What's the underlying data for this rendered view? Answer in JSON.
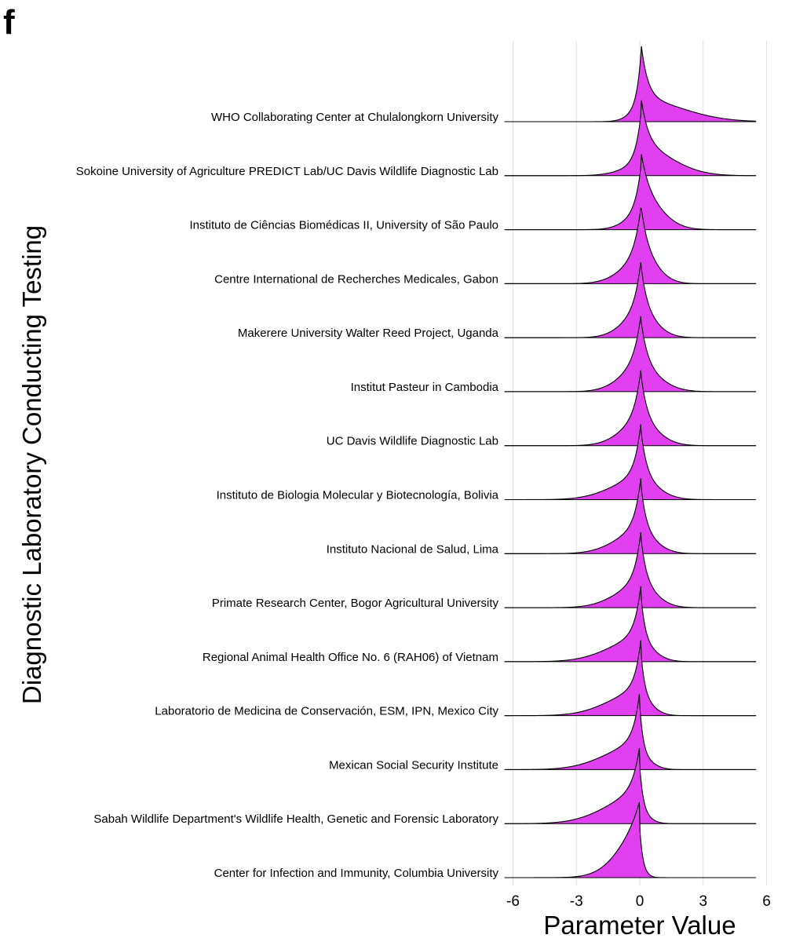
{
  "panel_label": "f",
  "chart_data": {
    "type": "ridgeline",
    "xlabel": "Parameter Value",
    "ylabel": "Diagnostic Laboratory Conducting Testing",
    "xlim": [
      -6.5,
      6.5
    ],
    "x_ticks": [
      -6,
      -3,
      0,
      3,
      6
    ],
    "x_tick_labels": [
      "-6",
      "-3",
      "0",
      "3",
      "6"
    ],
    "density_x_range": [
      -6.4,
      5.5
    ],
    "grid": true,
    "fill_color": "#e040ef",
    "line_color": "#000000",
    "categories": [
      "WHO Collaborating Center at Chulalongkorn University",
      "Sokoine University of Agriculture PREDICT Lab/UC Davis Wildlife Diagnostic Lab",
      "Instituto de Ciências Biomédicas II, University of São Paulo",
      "Centre International de Recherches Medicales, Gabon",
      "Makerere University Walter Reed Project, Uganda",
      "Institut Pasteur in Cambodia",
      "UC Davis Wildlife Diagnostic Lab",
      "Instituto de Biologia Molecular y Biotecnología, Bolivia",
      "Instituto Nacional de Salud, Lima",
      "Primate Research Center, Bogor Agricultural University",
      "Regional Animal Health Office No. 6 (RAH06) of Vietnam",
      "Laboratorio de Medicina de Conservación, ESM, IPN, Mexico City",
      "Mexican Social Security Institute",
      "Sabah Wildlife Department's Wildlife Health, Genetic and Forensic Laboratory",
      "Center for Infection and Immunity, Columbia University"
    ],
    "series": [
      {
        "peak": 0.05,
        "left_w": 0.22,
        "right_w": 0.32,
        "left_tail_w": 0.6,
        "left_tail_h": 0.1,
        "right_tail_w": 2.0,
        "right_tail_h": 0.3
      },
      {
        "peak": 0.05,
        "left_w": 0.28,
        "right_w": 0.35,
        "left_tail_w": 1.0,
        "left_tail_h": 0.12,
        "right_tail_w": 1.5,
        "right_tail_h": 0.42
      },
      {
        "peak": 0.05,
        "left_w": 0.3,
        "right_w": 0.4,
        "left_tail_w": 0.8,
        "left_tail_h": 0.15,
        "right_tail_w": 1.0,
        "right_tail_h": 0.42
      },
      {
        "peak": 0.05,
        "left_w": 0.35,
        "right_w": 0.35,
        "left_tail_w": 1.0,
        "left_tail_h": 0.25,
        "right_tail_w": 0.8,
        "right_tail_h": 0.3
      },
      {
        "peak": 0.05,
        "left_w": 0.32,
        "right_w": 0.32,
        "left_tail_w": 0.9,
        "left_tail_h": 0.28,
        "right_tail_w": 0.8,
        "right_tail_h": 0.25
      },
      {
        "peak": 0.05,
        "left_w": 0.35,
        "right_w": 0.35,
        "left_tail_w": 1.0,
        "left_tail_h": 0.3,
        "right_tail_w": 1.0,
        "right_tail_h": 0.25
      },
      {
        "peak": 0.05,
        "left_w": 0.32,
        "right_w": 0.32,
        "left_tail_w": 1.0,
        "left_tail_h": 0.3,
        "right_tail_w": 0.9,
        "right_tail_h": 0.25
      },
      {
        "peak": 0.05,
        "left_w": 0.3,
        "right_w": 0.3,
        "left_tail_w": 1.4,
        "left_tail_h": 0.3,
        "right_tail_w": 0.9,
        "right_tail_h": 0.22
      },
      {
        "peak": 0.05,
        "left_w": 0.3,
        "right_w": 0.28,
        "left_tail_w": 1.2,
        "left_tail_h": 0.32,
        "right_tail_w": 0.8,
        "right_tail_h": 0.22
      },
      {
        "peak": 0.05,
        "left_w": 0.3,
        "right_w": 0.28,
        "left_tail_w": 1.2,
        "left_tail_h": 0.32,
        "right_tail_w": 0.8,
        "right_tail_h": 0.25
      },
      {
        "peak": 0.05,
        "left_w": 0.3,
        "right_w": 0.22,
        "left_tail_w": 1.5,
        "left_tail_h": 0.35,
        "right_tail_w": 0.7,
        "right_tail_h": 0.22
      },
      {
        "peak": 0.05,
        "left_w": 0.28,
        "right_w": 0.2,
        "left_tail_w": 1.5,
        "left_tail_h": 0.38,
        "right_tail_w": 0.6,
        "right_tail_h": 0.2
      },
      {
        "peak": 0.0,
        "left_w": 0.3,
        "right_w": 0.18,
        "left_tail_w": 1.6,
        "left_tail_h": 0.38,
        "right_tail_w": 0.6,
        "right_tail_h": 0.15
      },
      {
        "peak": 0.0,
        "left_w": 0.35,
        "right_w": 0.18,
        "left_tail_w": 1.6,
        "left_tail_h": 0.45,
        "right_tail_w": 0.5,
        "right_tail_h": 0.1
      },
      {
        "peak": 0.0,
        "left_w": 0.6,
        "right_w": 0.15,
        "left_tail_w": 1.1,
        "left_tail_h": 0.55,
        "right_tail_w": 0.3,
        "right_tail_h": 0.05
      }
    ]
  }
}
